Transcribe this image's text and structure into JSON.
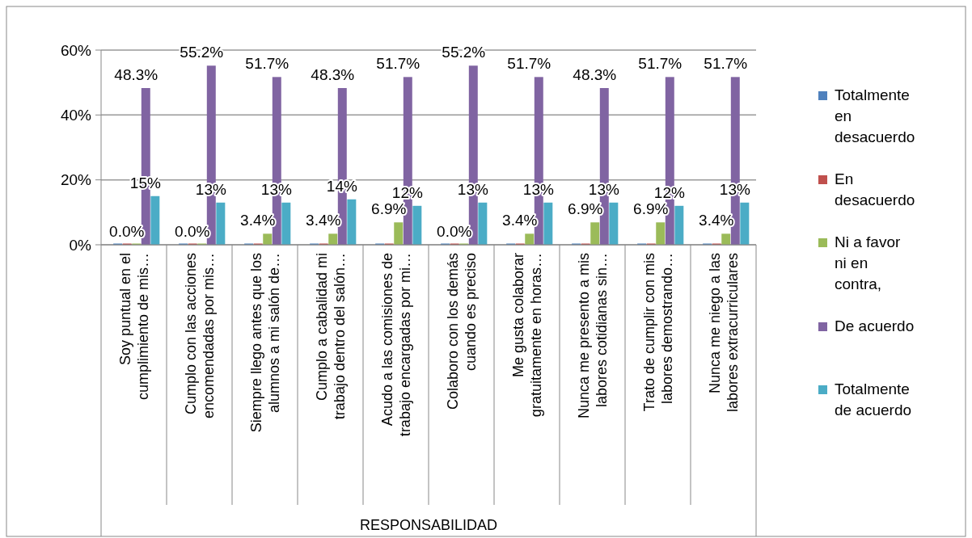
{
  "chart_data": {
    "type": "bar",
    "categories": [
      "Soy puntual en el\ncumplimiento de mis…",
      "Cumplo con las acciones\nencomendadas por mis…",
      "Siempre llego antes que los\nalumnos a mi salón de…",
      "Cumplo a cabalidad mi\ntrabajo dentro del salón…",
      "Acudo a las comisiones de\ntrabajo encargadas por mi…",
      "Colaboro con los demás\ncuando es preciso",
      "Me gusta colaborar\ngratuitamente en horas…",
      "Nunca me presento a mis\nlabores cotidianas sin…",
      "Trato de cumplir con mis\nlabores demostrando…",
      "Nunca me niego a las\nlabores extracurriculares"
    ],
    "annotations": [
      "RESPONSABILIDAD"
    ],
    "series": [
      {
        "name": "Totalmente en desacuerdo",
        "color": "#4f81bd",
        "values": [
          0,
          0,
          0,
          0,
          0,
          0,
          0,
          0,
          0,
          0
        ]
      },
      {
        "name": "En desacuerdo",
        "color": "#c0504d",
        "values": [
          0,
          0,
          0,
          0,
          0,
          0,
          0,
          0,
          0,
          0
        ]
      },
      {
        "name": "Ni a favor ni en contra,",
        "color": "#9bbb59",
        "values": [
          0,
          0,
          3.4,
          3.4,
          6.9,
          0,
          3.4,
          6.9,
          6.9,
          3.4
        ],
        "value_labels": [
          "0.0%",
          "0.0%",
          "3.4%",
          "3.4%",
          "6.9%",
          "0.0%",
          "3.4%",
          "6.9%",
          "6.9%",
          "3.4%"
        ]
      },
      {
        "name": "De acuerdo",
        "color": "#8064a2",
        "values": [
          48.3,
          55.2,
          51.7,
          48.3,
          51.7,
          55.2,
          51.7,
          48.3,
          51.7,
          51.7
        ],
        "value_labels": [
          "48.3%",
          "55.2%",
          "51.7%",
          "48.3%",
          "51.7%",
          "55.2%",
          "51.7%",
          "48.3%",
          "51.7%",
          "51.7%"
        ]
      },
      {
        "name": "Totalmente de acuerdo",
        "color": "#4bacc6",
        "values": [
          15,
          13,
          13,
          14,
          12,
          13,
          13,
          13,
          12,
          13
        ],
        "value_labels": [
          "15%",
          "13%",
          "13%",
          "14%",
          "12%",
          "13%",
          "13%",
          "13%",
          "12%",
          "13%"
        ]
      }
    ],
    "ylim": [
      0,
      60
    ],
    "yticks": [
      {
        "value": 0,
        "label": "0%"
      },
      {
        "value": 20,
        "label": "20%"
      },
      {
        "value": 40,
        "label": "40%"
      },
      {
        "value": 60,
        "label": "60%"
      }
    ],
    "grid": "y",
    "legend": "right"
  }
}
